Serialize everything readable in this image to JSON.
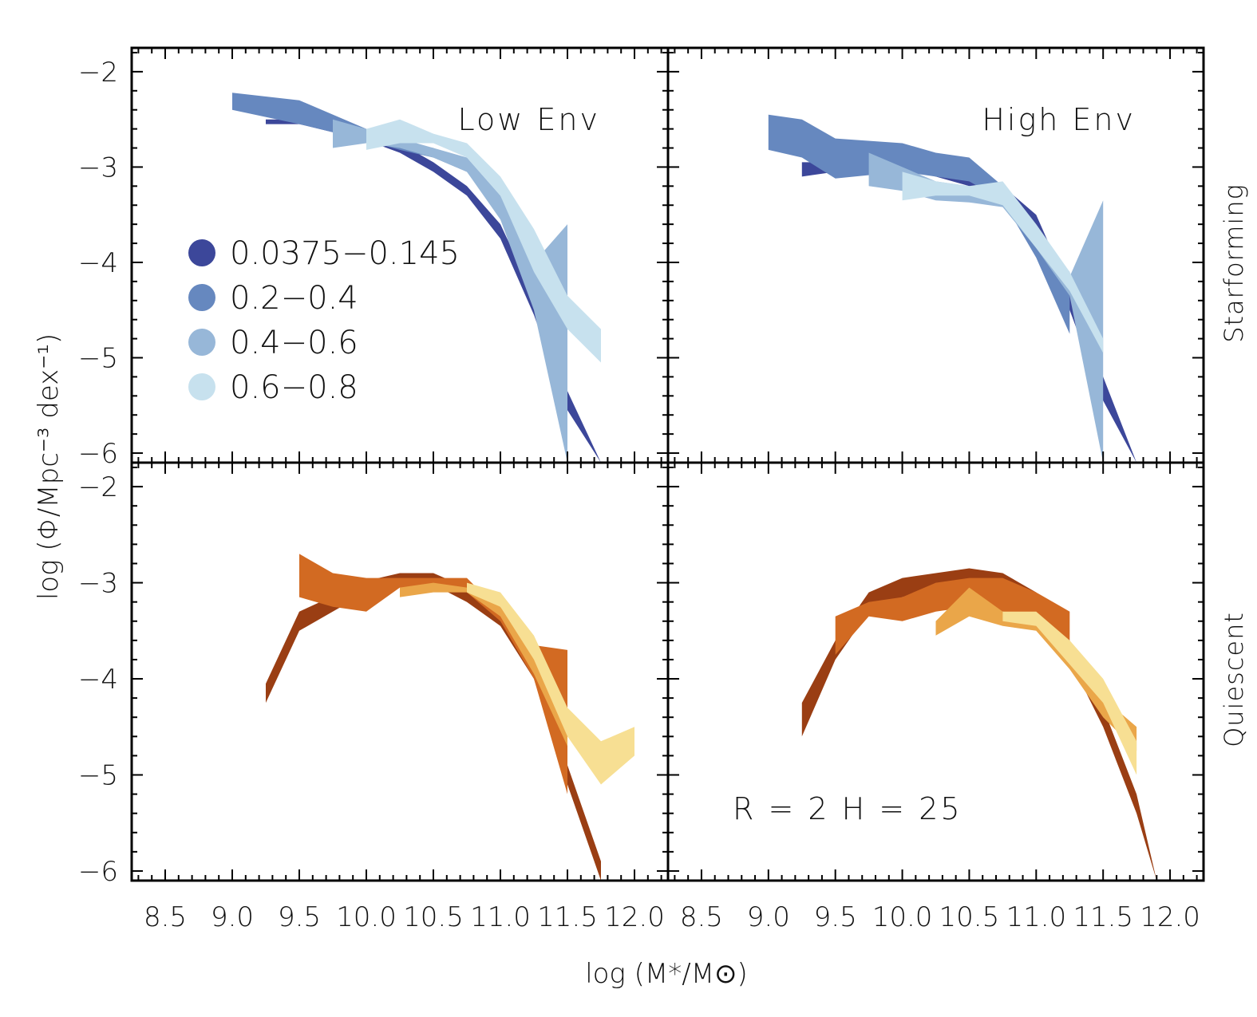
{
  "chart_data": {
    "type": "area",
    "layout": "2x2 panels",
    "xlabel": "log (M*/M⊙)",
    "ylabel": "log (Φ/Mpc⁻³ dex⁻¹)",
    "xlim": [
      8.25,
      12.25
    ],
    "ylim": [
      -6.1,
      -1.75
    ],
    "xticks": [
      "8.5",
      "9.0",
      "9.5",
      "10.0",
      "10.5",
      "11.0",
      "11.5",
      "12.0"
    ],
    "yticks": [
      "−2",
      "−3",
      "−4",
      "−5",
      "−6"
    ],
    "columns": [
      "Low Env",
      "High Env"
    ],
    "rows": [
      "Starforming",
      "Quiescent"
    ],
    "annotation": "R = 2 H = 25",
    "legend": [
      "0.0375−0.145",
      "0.2−0.4",
      "0.4−0.6",
      "0.6−0.8"
    ],
    "colors": {
      "starforming": [
        "#3c479a",
        "#6688bf",
        "#97b7d8",
        "#c7e1ee"
      ],
      "quiescent": [
        "#9a3e13",
        "#d26a22",
        "#eaa649",
        "#f7df93"
      ]
    },
    "panels": [
      {
        "row": "Starforming",
        "col": "Low Env",
        "series": [
          {
            "name": "0.0375−0.145",
            "x": [
              9.25,
              9.5,
              10.0,
              10.25,
              10.5,
              10.75,
              11.0,
              11.25,
              11.5,
              11.75
            ],
            "upper": [
              -2.5,
              -2.5,
              -2.65,
              -2.75,
              -2.95,
              -3.2,
              -3.6,
              -4.35,
              -5.35,
              -6.1
            ],
            "lower": [
              -2.55,
              -2.55,
              -2.72,
              -2.85,
              -3.05,
              -3.3,
              -3.75,
              -4.55,
              -5.55,
              -6.1
            ]
          },
          {
            "name": "0.2−0.4",
            "x": [
              9.0,
              9.5,
              10.0,
              10.25,
              10.5,
              10.75,
              11.0,
              11.25
            ],
            "upper": [
              -2.22,
              -2.3,
              -2.6,
              -2.72,
              -2.8,
              -2.95,
              -3.35,
              -4.0
            ],
            "lower": [
              -2.4,
              -2.55,
              -2.72,
              -2.82,
              -2.9,
              -3.05,
              -3.5,
              -4.1
            ]
          },
          {
            "name": "0.4−0.6",
            "x": [
              9.75,
              10.0,
              10.25,
              10.5,
              10.75,
              11.0,
              11.25,
              11.5
            ],
            "upper": [
              -2.5,
              -2.6,
              -2.7,
              -2.8,
              -2.9,
              -3.3,
              -4.0,
              -3.6
            ],
            "lower": [
              -2.8,
              -2.75,
              -2.8,
              -2.9,
              -3.05,
              -3.55,
              -4.5,
              -6.1
            ]
          },
          {
            "name": "0.6−0.8",
            "x": [
              10.0,
              10.25,
              10.5,
              10.75,
              11.0,
              11.25,
              11.5,
              11.75
            ],
            "upper": [
              -2.6,
              -2.5,
              -2.65,
              -2.75,
              -3.1,
              -3.65,
              -4.35,
              -4.7
            ],
            "lower": [
              -2.82,
              -2.75,
              -2.75,
              -2.9,
              -3.3,
              -4.1,
              -4.7,
              -5.05
            ]
          }
        ]
      },
      {
        "row": "Starforming",
        "col": "High Env",
        "series": [
          {
            "name": "0.0375−0.145",
            "x": [
              9.25,
              9.5,
              10.0,
              10.25,
              10.5,
              10.75,
              11.0,
              11.25,
              11.5,
              11.75
            ],
            "upper": [
              -2.95,
              -2.95,
              -2.9,
              -3.0,
              -3.1,
              -3.2,
              -3.5,
              -4.3,
              -5.2,
              -6.1
            ],
            "lower": [
              -3.1,
              -3.05,
              -3.02,
              -3.1,
              -3.2,
              -3.3,
              -3.7,
              -4.5,
              -5.45,
              -6.1
            ]
          },
          {
            "name": "0.2−0.4",
            "x": [
              9.0,
              9.25,
              9.5,
              10.0,
              10.25,
              10.5,
              10.75,
              11.0,
              11.25
            ],
            "upper": [
              -2.45,
              -2.5,
              -2.7,
              -2.75,
              -2.85,
              -2.9,
              -3.2,
              -3.7,
              -4.1
            ],
            "lower": [
              -2.82,
              -2.9,
              -3.12,
              -3.05,
              -3.1,
              -3.15,
              -3.35,
              -3.95,
              -4.75
            ]
          },
          {
            "name": "0.4−0.6",
            "x": [
              9.75,
              10.0,
              10.25,
              10.5,
              10.75,
              11.0,
              11.25,
              11.5
            ],
            "upper": [
              -2.85,
              -3.0,
              -3.15,
              -3.2,
              -3.3,
              -3.65,
              -4.15,
              -3.35
            ],
            "lower": [
              -3.2,
              -3.25,
              -3.35,
              -3.37,
              -3.42,
              -3.85,
              -4.35,
              -6.1
            ]
          },
          {
            "name": "0.6−0.8",
            "x": [
              10.0,
              10.25,
              10.5,
              10.75,
              11.0,
              11.25,
              11.5
            ],
            "upper": [
              -3.05,
              -3.15,
              -3.2,
              -3.15,
              -3.6,
              -4.1,
              -4.8
            ],
            "lower": [
              -3.35,
              -3.3,
              -3.3,
              -3.4,
              -3.85,
              -4.3,
              -4.95
            ]
          }
        ]
      },
      {
        "row": "Quiescent",
        "col": "Low Env",
        "series": [
          {
            "name": "0.0375−0.145",
            "x": [
              9.25,
              9.5,
              10.0,
              10.25,
              10.5,
              10.75,
              11.0,
              11.25,
              11.5,
              11.75
            ],
            "upper": [
              -4.05,
              -3.3,
              -2.98,
              -2.9,
              -2.9,
              -3.05,
              -3.3,
              -3.85,
              -4.9,
              -5.9
            ],
            "lower": [
              -4.25,
              -3.5,
              -3.1,
              -3.0,
              -3.02,
              -3.2,
              -3.45,
              -4.0,
              -5.1,
              -6.1
            ]
          },
          {
            "name": "0.2−0.4",
            "x": [
              9.5,
              9.75,
              10.0,
              10.25,
              10.5,
              10.75,
              11.0,
              11.25,
              11.5
            ],
            "upper": [
              -2.7,
              -2.9,
              -2.95,
              -2.95,
              -2.95,
              -2.95,
              -3.3,
              -3.65,
              -3.7
            ],
            "lower": [
              -3.15,
              -3.25,
              -3.3,
              -3.05,
              -3.05,
              -3.1,
              -3.4,
              -4.0,
              -5.2
            ]
          },
          {
            "name": "0.4−0.6",
            "x": [
              10.25,
              10.5,
              10.75,
              11.0,
              11.25,
              11.5
            ],
            "upper": [
              -3.05,
              -3.0,
              -3.05,
              -3.25,
              -3.75,
              -4.5
            ],
            "lower": [
              -3.15,
              -3.1,
              -3.1,
              -3.35,
              -3.95,
              -4.7
            ]
          },
          {
            "name": "0.6−0.8",
            "x": [
              10.75,
              11.0,
              11.25,
              11.5,
              11.75,
              12.0
            ],
            "upper": [
              -3.0,
              -3.1,
              -3.55,
              -4.3,
              -4.65,
              -4.5
            ],
            "lower": [
              -3.1,
              -3.25,
              -3.8,
              -4.6,
              -5.1,
              -4.8
            ]
          }
        ]
      },
      {
        "row": "Quiescent",
        "col": "High Env",
        "series": [
          {
            "name": "0.0375−0.145",
            "x": [
              9.25,
              9.5,
              9.75,
              10.0,
              10.25,
              10.5,
              10.75,
              11.0,
              11.25,
              11.5,
              11.75,
              11.9
            ],
            "upper": [
              -4.25,
              -3.6,
              -3.1,
              -2.95,
              -2.9,
              -2.85,
              -2.9,
              -3.1,
              -3.6,
              -4.3,
              -5.2,
              -6.1
            ],
            "lower": [
              -4.6,
              -3.8,
              -3.3,
              -3.15,
              -3.05,
              -3.0,
              -3.05,
              -3.25,
              -3.8,
              -4.5,
              -5.4,
              -6.1
            ]
          },
          {
            "name": "0.2−0.4",
            "x": [
              9.5,
              9.75,
              10.0,
              10.25,
              10.5,
              10.75,
              11.0,
              11.25
            ],
            "upper": [
              -3.35,
              -3.2,
              -3.15,
              -3.0,
              -2.95,
              -2.95,
              -3.1,
              -3.3
            ],
            "lower": [
              -3.75,
              -3.35,
              -3.4,
              -3.3,
              -3.25,
              -3.3,
              -3.4,
              -3.6
            ]
          },
          {
            "name": "0.4−0.6",
            "x": [
              10.25,
              10.5,
              10.75,
              11.0,
              11.25,
              11.5,
              11.75
            ],
            "upper": [
              -3.4,
              -3.05,
              -3.3,
              -3.35,
              -3.75,
              -4.2,
              -4.5
            ],
            "lower": [
              -3.55,
              -3.35,
              -3.45,
              -3.5,
              -3.9,
              -4.4,
              -4.75
            ]
          },
          {
            "name": "0.6−0.8",
            "x": [
              10.75,
              11.0,
              11.25,
              11.5,
              11.75
            ],
            "upper": [
              -3.3,
              -3.3,
              -3.6,
              -4.0,
              -4.65
            ],
            "lower": [
              -3.4,
              -3.45,
              -3.85,
              -4.25,
              -5.0
            ]
          }
        ]
      }
    ]
  }
}
